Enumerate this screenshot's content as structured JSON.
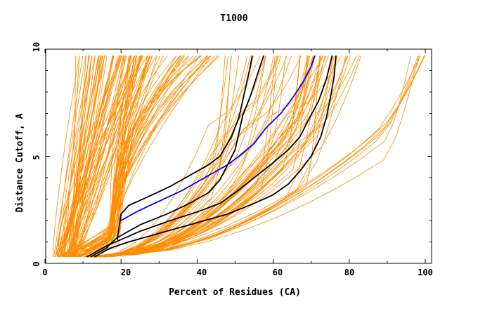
{
  "chart_data": {
    "type": "line",
    "title": "T1000",
    "xlabel": "Percent of Residues (CA)",
    "ylabel": "Distance Cutoff, A",
    "xlim": [
      0,
      100
    ],
    "ylim": [
      0,
      10
    ],
    "x_ticks": [
      "0",
      "20",
      "40",
      "60",
      "80",
      "100"
    ],
    "y_ticks": [
      "0",
      "5",
      "10"
    ],
    "colors": {
      "background_models": "#ff8c00",
      "black_models": "#000000",
      "blue_model": "#0000ff",
      "axes": "#000000"
    },
    "series": [
      {
        "name": "black-model-1",
        "color": "#000000",
        "points": [
          [
            19,
            1.1
          ],
          [
            20,
            2.3
          ],
          [
            22,
            2.7
          ],
          [
            27,
            3.1
          ],
          [
            33,
            3.6
          ],
          [
            38,
            4.1
          ],
          [
            43,
            4.6
          ],
          [
            46,
            5.0
          ],
          [
            49,
            5.9
          ],
          [
            51,
            6.8
          ],
          [
            52,
            7.6
          ],
          [
            53,
            8.4
          ],
          [
            54,
            9.2
          ],
          [
            54.5,
            9.7
          ]
        ]
      },
      {
        "name": "black-model-2",
        "color": "#000000",
        "points": [
          [
            12,
            0.3
          ],
          [
            16,
            0.7
          ],
          [
            19,
            1.2
          ],
          [
            25,
            1.8
          ],
          [
            32,
            2.3
          ],
          [
            38,
            2.8
          ],
          [
            43,
            3.3
          ],
          [
            46,
            3.9
          ],
          [
            48,
            4.6
          ],
          [
            50,
            5.3
          ],
          [
            51,
            6.1
          ],
          [
            52,
            6.9
          ],
          [
            54,
            7.8
          ],
          [
            56,
            8.9
          ],
          [
            57.5,
            9.7
          ]
        ]
      },
      {
        "name": "black-model-3",
        "color": "#000000",
        "points": [
          [
            11,
            0.3
          ],
          [
            16,
            0.8
          ],
          [
            25,
            1.5
          ],
          [
            33,
            2.0
          ],
          [
            40,
            2.4
          ],
          [
            46,
            2.8
          ],
          [
            50,
            3.3
          ],
          [
            55,
            4.0
          ],
          [
            60,
            4.7
          ],
          [
            64,
            5.3
          ],
          [
            67,
            5.9
          ],
          [
            69,
            6.6
          ],
          [
            72,
            7.6
          ],
          [
            74,
            8.6
          ],
          [
            75.5,
            9.7
          ]
        ]
      },
      {
        "name": "black-model-4",
        "color": "#000000",
        "points": [
          [
            13,
            0.3
          ],
          [
            17,
            0.7
          ],
          [
            22,
            1.0
          ],
          [
            30,
            1.4
          ],
          [
            40,
            1.9
          ],
          [
            48,
            2.3
          ],
          [
            55,
            2.8
          ],
          [
            60,
            3.2
          ],
          [
            64,
            3.7
          ],
          [
            67,
            4.3
          ],
          [
            70,
            5.0
          ],
          [
            72.5,
            5.9
          ],
          [
            74,
            6.8
          ],
          [
            75,
            7.7
          ],
          [
            76,
            8.7
          ],
          [
            76.5,
            9.7
          ]
        ]
      },
      {
        "name": "blue-model",
        "color": "#0000ff",
        "points": [
          [
            20,
            2.0
          ],
          [
            24,
            2.4
          ],
          [
            30,
            2.9
          ],
          [
            36,
            3.4
          ],
          [
            40,
            3.8
          ],
          [
            44,
            4.2
          ],
          [
            48,
            4.6
          ],
          [
            51,
            5.0
          ],
          [
            55,
            5.6
          ],
          [
            58,
            6.3
          ],
          [
            62,
            7.0
          ],
          [
            65,
            7.7
          ],
          [
            68,
            8.5
          ],
          [
            70,
            9.2
          ],
          [
            71,
            9.7
          ]
        ]
      }
    ]
  }
}
